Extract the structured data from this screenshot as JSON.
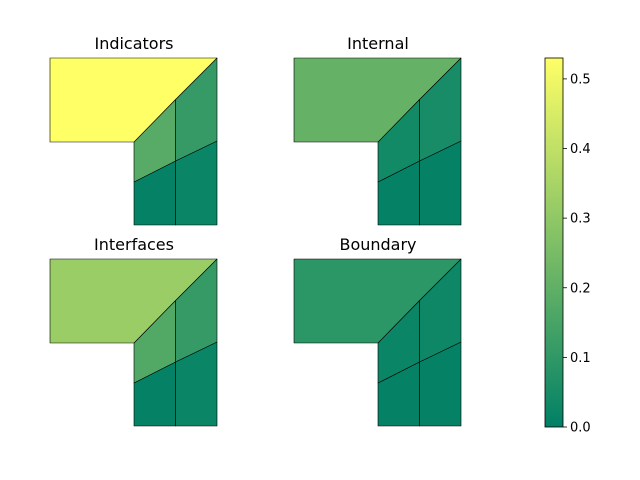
{
  "chart_data": {
    "type": "heatmap",
    "colormap": "summer",
    "colormap_stops": [
      "#008066",
      "#ffff66"
    ],
    "clim": [
      0.0,
      0.53
    ],
    "colorbar": {
      "ticks": [
        0.0,
        0.1,
        0.2,
        0.3,
        0.4,
        0.5
      ],
      "tick_labels": [
        "0.0",
        "0.1",
        "0.2",
        "0.3",
        "0.4",
        "0.5"
      ]
    },
    "panels": [
      {
        "title": "Indicators",
        "cells": {
          "big": 0.53,
          "mid_left": 0.18,
          "mid_right": 0.11,
          "bottom_left": 0.01,
          "bottom_right": 0.02
        }
      },
      {
        "title": "Internal",
        "cells": {
          "big": 0.21,
          "mid_left": 0.04,
          "mid_right": 0.05,
          "bottom_left": 0.01,
          "bottom_right": 0.01
        }
      },
      {
        "title": "Interfaces",
        "cells": {
          "big": 0.32,
          "mid_left": 0.17,
          "mid_right": 0.11,
          "bottom_left": 0.01,
          "bottom_right": 0.02
        }
      },
      {
        "title": "Boundary",
        "cells": {
          "big": 0.09,
          "mid_left": 0.02,
          "mid_right": 0.03,
          "bottom_left": 0.01,
          "bottom_right": 0.01
        }
      }
    ]
  }
}
